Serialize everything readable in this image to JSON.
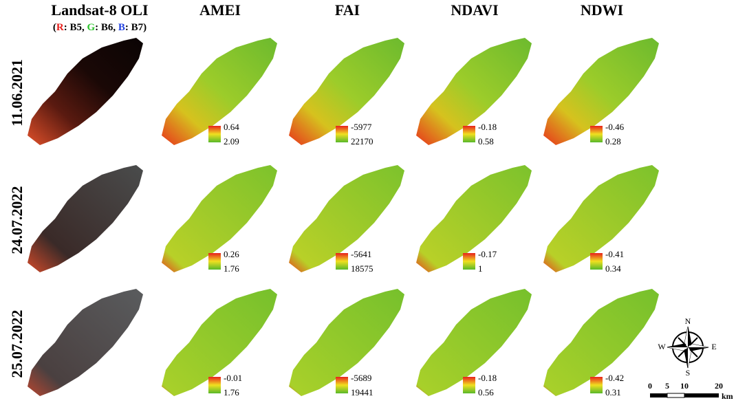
{
  "columns": [
    "Landsat-8 OLI",
    "AMEI",
    "FAI",
    "NDAVI",
    "NDWI"
  ],
  "subtitle": [
    "(",
    "R",
    ": B5, ",
    "G",
    ": B6, ",
    "B",
    ": B7)"
  ],
  "rows": [
    {
      "date": "11.06.2021",
      "legends": [
        [
          0.64,
          2.09
        ],
        [
          -5977,
          22170
        ],
        [
          -0.18,
          0.58
        ],
        [
          -0.46,
          0.28
        ]
      ]
    },
    {
      "date": "24.07.2022",
      "legends": [
        [
          0.26,
          1.76
        ],
        [
          -5641,
          18575
        ],
        [
          -0.17,
          1
        ],
        [
          -0.41,
          0.34
        ]
      ]
    },
    {
      "date": "25.07.2022",
      "legends": [
        [
          -0.01,
          1.76
        ],
        [
          -5689,
          19441
        ],
        [
          -0.18,
          0.56
        ],
        [
          -0.42,
          0.31
        ]
      ]
    }
  ],
  "compass": {
    "n": "N",
    "s": "S",
    "e": "E",
    "w": "W"
  },
  "scale": {
    "ticks": [
      0,
      5,
      10,
      20
    ],
    "unit": "km"
  }
}
